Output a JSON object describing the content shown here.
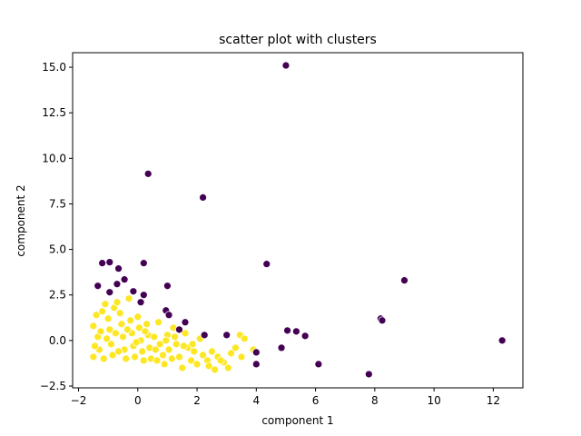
{
  "chart_data": {
    "type": "scatter",
    "title": "scatter plot with clusters",
    "xlabel": "component 1",
    "ylabel": "component 2",
    "xlim": [
      -2.2,
      13.0
    ],
    "ylim": [
      -2.6,
      15.8
    ],
    "xticks": [
      -2,
      0,
      2,
      4,
      6,
      8,
      10,
      12
    ],
    "yticks": [
      -2.5,
      0.0,
      2.5,
      5.0,
      7.5,
      10.0,
      12.5,
      15.0
    ],
    "xtick_labels": [
      "−2",
      "0",
      "2",
      "4",
      "6",
      "8",
      "10",
      "12"
    ],
    "ytick_labels": [
      "−2.5",
      "0.0",
      "2.5",
      "5.0",
      "7.5",
      "10.0",
      "12.5",
      "15.0"
    ],
    "grid": false,
    "colors": {
      "cluster_0": "#440154",
      "cluster_1": "#fde725"
    },
    "series": [
      {
        "cluster": 0,
        "color": "#440154",
        "points": [
          [
            5.0,
            15.1
          ],
          [
            0.35,
            9.15
          ],
          [
            2.2,
            7.85
          ],
          [
            -1.2,
            4.25
          ],
          [
            -0.95,
            4.3
          ],
          [
            -0.65,
            3.95
          ],
          [
            0.2,
            4.25
          ],
          [
            4.35,
            4.2
          ],
          [
            -1.35,
            3.0
          ],
          [
            -0.45,
            3.35
          ],
          [
            -0.7,
            3.1
          ],
          [
            -0.95,
            2.65
          ],
          [
            -0.15,
            2.7
          ],
          [
            0.2,
            2.5
          ],
          [
            0.1,
            2.1
          ],
          [
            1.0,
            3.0
          ],
          [
            0.95,
            1.65
          ],
          [
            1.05,
            1.4
          ],
          [
            1.6,
            1.0
          ],
          [
            1.4,
            0.6
          ],
          [
            2.25,
            0.3
          ],
          [
            3.0,
            0.3
          ],
          [
            5.05,
            0.55
          ],
          [
            5.35,
            0.5
          ],
          [
            5.65,
            0.25
          ],
          [
            4.85,
            -0.4
          ],
          [
            4.0,
            -0.65
          ],
          [
            4.0,
            -1.3
          ],
          [
            6.1,
            -1.3
          ],
          [
            7.8,
            -1.85
          ],
          [
            8.2,
            1.2
          ],
          [
            8.25,
            1.1
          ],
          [
            9.0,
            3.3
          ],
          [
            12.3,
            0.0
          ]
        ]
      },
      {
        "cluster": 1,
        "color": "#fde725",
        "points": [
          [
            -1.5,
            0.8
          ],
          [
            -1.4,
            1.4
          ],
          [
            -1.35,
            0.2
          ],
          [
            -1.3,
            -0.5
          ],
          [
            -1.5,
            -0.9
          ],
          [
            -1.2,
            1.6
          ],
          [
            -1.1,
            2.0
          ],
          [
            -1.0,
            1.2
          ],
          [
            -0.95,
            0.6
          ],
          [
            -0.9,
            -0.2
          ],
          [
            -0.85,
            -0.8
          ],
          [
            -0.8,
            1.8
          ],
          [
            -0.7,
            2.1
          ],
          [
            -0.6,
            1.5
          ],
          [
            -0.55,
            0.9
          ],
          [
            -0.5,
            0.2
          ],
          [
            -0.45,
            -0.5
          ],
          [
            -0.4,
            -1.0
          ],
          [
            -0.3,
            2.3
          ],
          [
            -0.25,
            1.1
          ],
          [
            -0.2,
            0.4
          ],
          [
            -0.15,
            -0.3
          ],
          [
            -0.1,
            -0.9
          ],
          [
            0.0,
            1.3
          ],
          [
            0.05,
            0.7
          ],
          [
            0.1,
            0.0
          ],
          [
            0.15,
            -0.6
          ],
          [
            0.2,
            -1.1
          ],
          [
            0.3,
            0.9
          ],
          [
            0.35,
            0.3
          ],
          [
            0.4,
            -0.4
          ],
          [
            0.45,
            -1.0
          ],
          [
            0.55,
            0.2
          ],
          [
            0.6,
            -0.5
          ],
          [
            0.7,
            1.0
          ],
          [
            0.75,
            -0.2
          ],
          [
            0.85,
            -0.8
          ],
          [
            0.9,
            -1.3
          ],
          [
            1.0,
            0.3
          ],
          [
            1.05,
            -0.5
          ],
          [
            1.15,
            -1.0
          ],
          [
            1.2,
            0.7
          ],
          [
            1.3,
            -0.2
          ],
          [
            1.4,
            -0.9
          ],
          [
            1.5,
            -1.5
          ],
          [
            1.6,
            0.4
          ],
          [
            1.7,
            -0.4
          ],
          [
            1.8,
            -1.1
          ],
          [
            1.9,
            -0.6
          ],
          [
            2.0,
            -1.3
          ],
          [
            2.1,
            0.1
          ],
          [
            2.2,
            -0.8
          ],
          [
            2.35,
            -1.1
          ],
          [
            2.5,
            -0.6
          ],
          [
            2.6,
            -1.6
          ],
          [
            2.7,
            -0.9
          ],
          [
            2.9,
            -1.2
          ],
          [
            3.05,
            -1.5
          ],
          [
            3.15,
            -0.7
          ],
          [
            3.3,
            -0.4
          ],
          [
            3.45,
            0.3
          ],
          [
            3.5,
            -0.9
          ],
          [
            3.6,
            0.1
          ],
          [
            3.9,
            -0.5
          ],
          [
            -1.45,
            -0.3
          ],
          [
            -1.25,
            0.5
          ],
          [
            -1.15,
            -1.0
          ],
          [
            -1.05,
            0.1
          ],
          [
            -0.75,
            0.4
          ],
          [
            -0.65,
            -0.6
          ],
          [
            -0.35,
            0.6
          ],
          [
            -0.05,
            -0.1
          ],
          [
            0.25,
            0.5
          ],
          [
            0.65,
            -1.1
          ],
          [
            0.95,
            0.0
          ],
          [
            1.25,
            0.2
          ],
          [
            1.55,
            -0.3
          ],
          [
            1.85,
            -0.2
          ],
          [
            2.4,
            -1.4
          ],
          [
            2.8,
            -1.1
          ]
        ]
      }
    ]
  }
}
